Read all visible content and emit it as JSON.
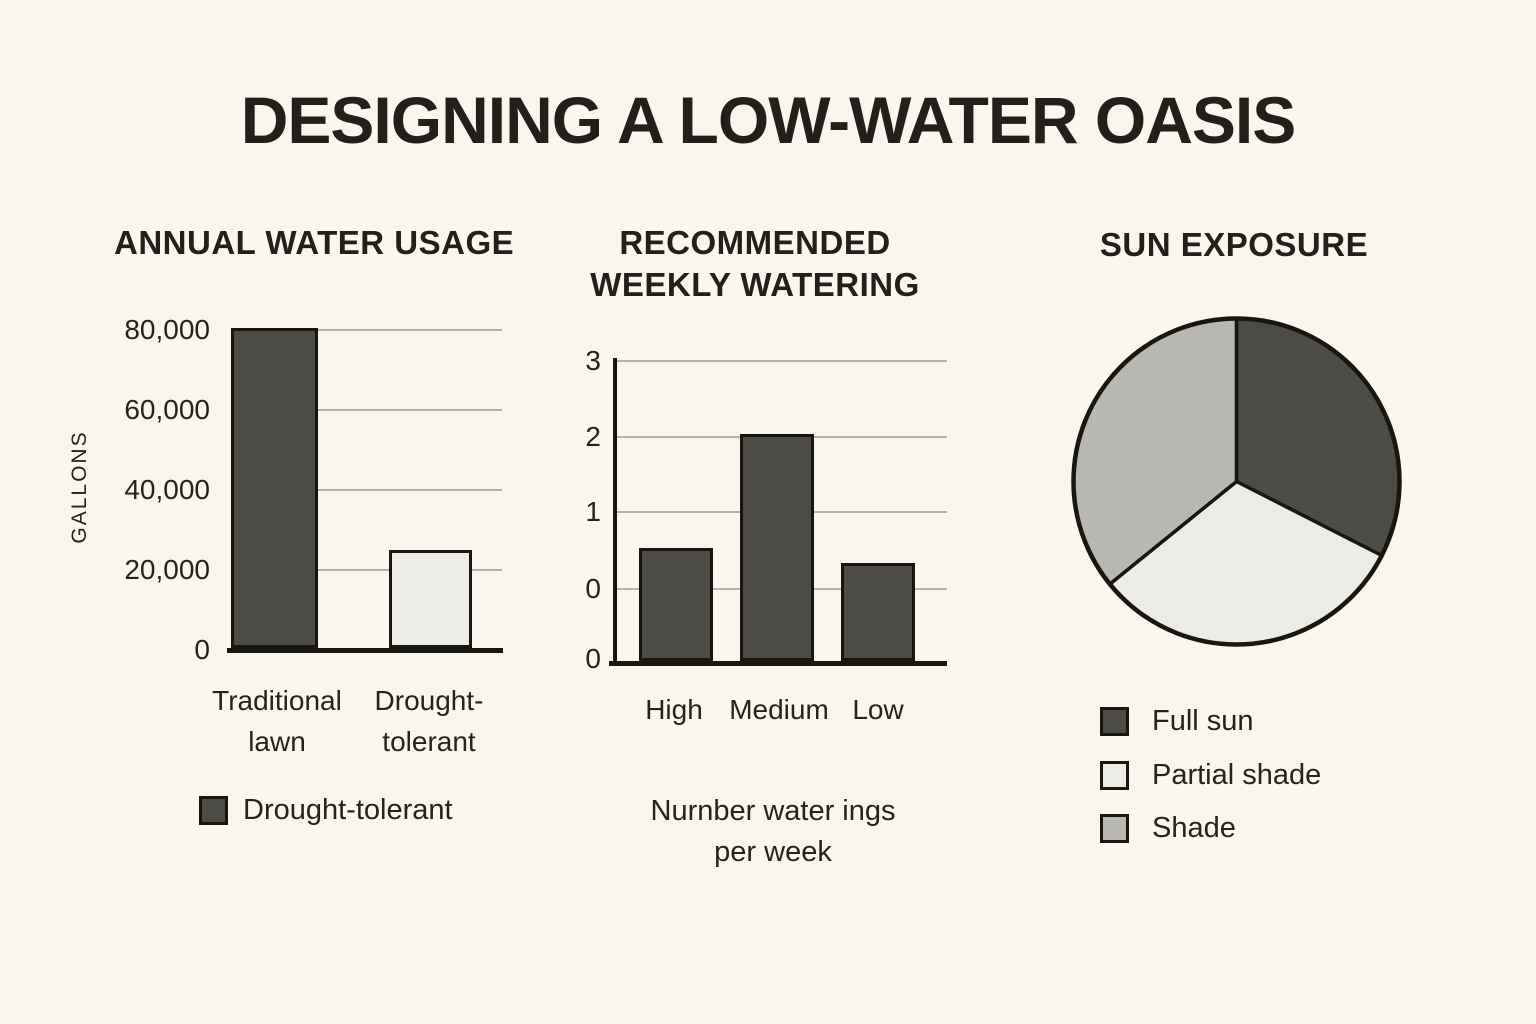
{
  "page": {
    "title": "DESIGNING A LOW-WATER OASIS",
    "background": "#faf6ee"
  },
  "colors": {
    "ink": "#17160f",
    "text": "#21201b",
    "dark_fill": "#4c4b45",
    "light_fill": "#edebe7",
    "gray_fill": "#b9b7b2",
    "gridline": "#b3b1ad"
  },
  "chart_data": [
    {
      "type": "bar",
      "title": "ANNUAL WATER USAGE",
      "ylabel": "GALLONS",
      "categories": [
        "Traditional lawn",
        "Drought-tolerant"
      ],
      "category_lines": [
        [
          "Traditional",
          "lawn"
        ],
        [
          "Drought-",
          "tolerant"
        ]
      ],
      "values": [
        80000,
        24500
      ],
      "bar_colors": [
        "#4c4b45",
        "#edebe7"
      ],
      "y_ticks": [
        "80,000",
        "60,000",
        "40,000",
        "20,000",
        "0"
      ],
      "ylim": [
        0,
        80000
      ],
      "grid": true,
      "legend_position": "bottom",
      "legend": [
        {
          "label": "Drought-tolerant",
          "color": "#4c4b45"
        }
      ]
    },
    {
      "type": "bar",
      "title": "RECOMMENDED WEEKLY WATERING",
      "title_lines": [
        "RECOMMENDED",
        "WEEKLY WATERING"
      ],
      "categories": [
        "High",
        "Medium",
        "Low"
      ],
      "values": [
        0.5,
        2,
        0.3
      ],
      "bar_colors": [
        "#4c4b45",
        "#4c4b45",
        "#4c4b45"
      ],
      "y_ticks": [
        "3",
        "2",
        "1",
        "0",
        "0"
      ],
      "ylim": [
        -1,
        3
      ],
      "baseline": -1,
      "grid": true,
      "caption": "Nurnber water ings per week",
      "caption_lines": [
        "Nurnber water ings",
        "per week"
      ]
    },
    {
      "type": "pie",
      "title": "SUN EXPOSURE",
      "legend_position": "bottom",
      "slices": [
        {
          "label": "Full sun",
          "color": "#4c4b45",
          "percent": 32.5,
          "start_deg": 0,
          "end_deg": 117
        },
        {
          "label": "Partial shade",
          "color": "#edebe7",
          "percent": 31.7,
          "start_deg": 117,
          "end_deg": 231
        },
        {
          "label": "Shade",
          "color": "#b9b7b2",
          "percent": 35.8,
          "start_deg": 231,
          "end_deg": 360
        }
      ]
    }
  ]
}
